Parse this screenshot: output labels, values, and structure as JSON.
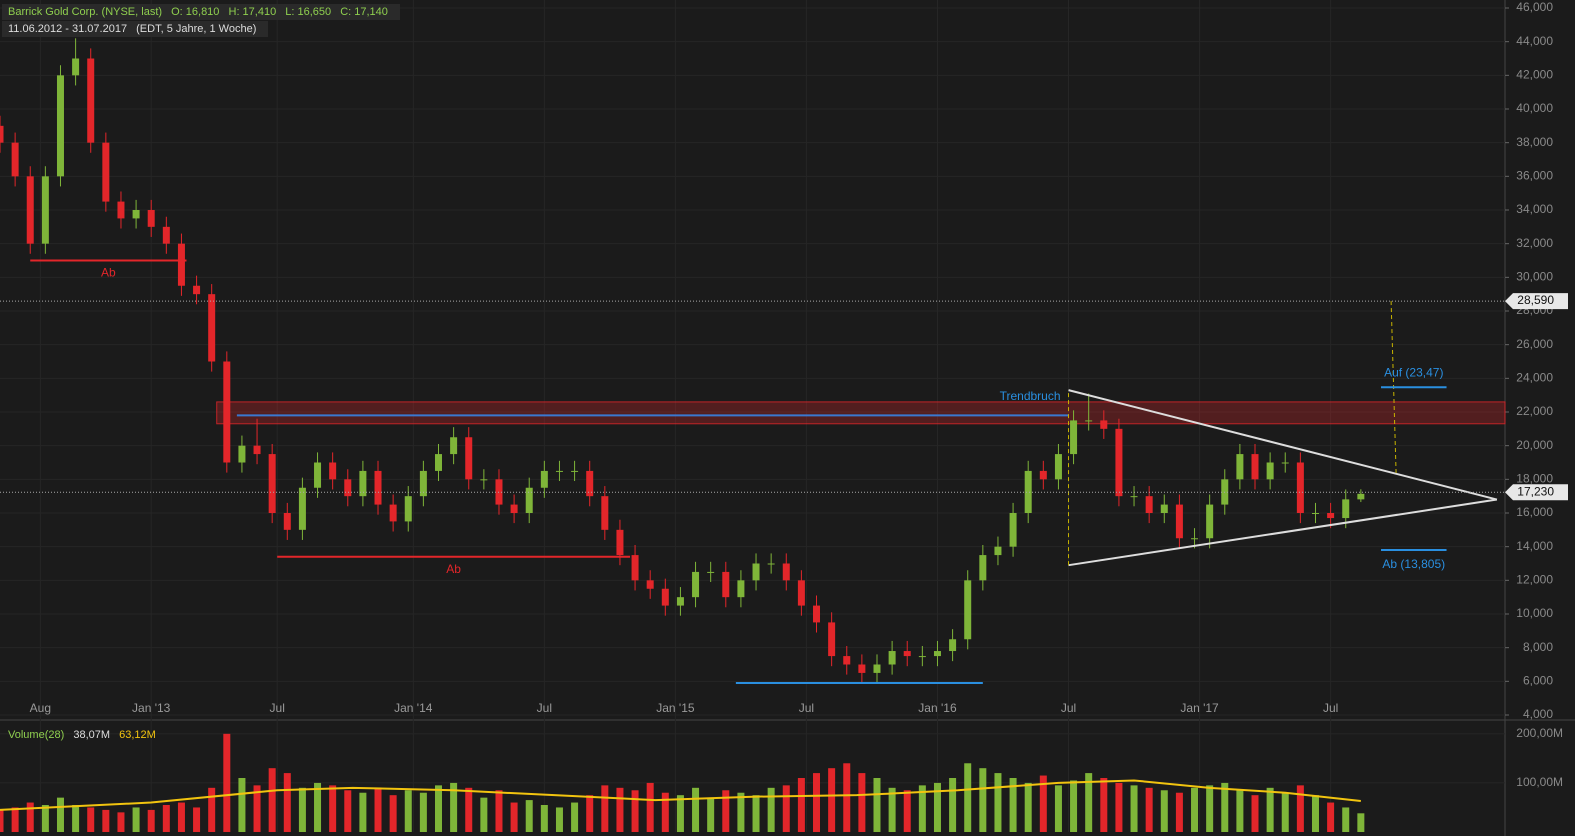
{
  "chart_data": {
    "type": "candlestick",
    "title": "Barrick Gold Corp. (NYSE, last)",
    "quote": [
      "O: 16,810",
      "H: 17,410",
      "L: 16,650",
      "C: 17,140"
    ],
    "range": "11.06.2012 - 31.07.2017",
    "range_note": "(EDT, 5 Jahre, 1 Woche)",
    "up_color": "#7fb539",
    "down_color": "#e3262a",
    "xlim": [
      0,
      298.6
    ],
    "ylim": [
      4,
      46
    ],
    "xticks": [
      {
        "value": 8,
        "label": "Aug"
      },
      {
        "value": 30,
        "label": "Jan '13"
      },
      {
        "value": 55,
        "label": "Jul"
      },
      {
        "value": 82,
        "label": "Jan '14"
      },
      {
        "value": 108,
        "label": "Jul"
      },
      {
        "value": 134,
        "label": "Jan '15"
      },
      {
        "value": 160,
        "label": "Jul"
      },
      {
        "value": 186,
        "label": "Jan '16"
      },
      {
        "value": 212,
        "label": "Jul"
      },
      {
        "value": 238,
        "label": "Jan '17"
      },
      {
        "value": 264,
        "label": "Jul"
      }
    ],
    "yticks": [
      {
        "value": 4,
        "label": "4,000"
      },
      {
        "value": 6,
        "label": "6,000"
      },
      {
        "value": 8,
        "label": "8,000"
      },
      {
        "value": 10,
        "label": "10,000"
      },
      {
        "value": 12,
        "label": "12,000"
      },
      {
        "value": 14,
        "label": "14,000"
      },
      {
        "value": 16,
        "label": "16,000"
      },
      {
        "value": 18,
        "label": "18,000"
      },
      {
        "value": 20,
        "label": "20,000"
      },
      {
        "value": 22,
        "label": "22,000"
      },
      {
        "value": 24,
        "label": "24,000"
      },
      {
        "value": 26,
        "label": "26,000"
      },
      {
        "value": 28,
        "label": "28,000"
      },
      {
        "value": 30,
        "label": "30,000"
      },
      {
        "value": 32,
        "label": "32,000"
      },
      {
        "value": 34,
        "label": "34,000"
      },
      {
        "value": 36,
        "label": "36,000"
      },
      {
        "value": 38,
        "label": "38,000"
      },
      {
        "value": 40,
        "label": "40,000"
      },
      {
        "value": 42,
        "label": "42,000"
      },
      {
        "value": 44,
        "label": "44,000"
      },
      {
        "value": 46,
        "label": "46,000"
      }
    ],
    "x": [
      0,
      3,
      6,
      9,
      12,
      15,
      18,
      21,
      24,
      27,
      30,
      33,
      36,
      39,
      42,
      45,
      48,
      51,
      54,
      57,
      60,
      63,
      66,
      69,
      72,
      75,
      78,
      81,
      84,
      87,
      90,
      93,
      96,
      99,
      102,
      105,
      108,
      111,
      114,
      117,
      120,
      123,
      126,
      129,
      132,
      135,
      138,
      141,
      144,
      147,
      150,
      153,
      156,
      159,
      162,
      165,
      168,
      171,
      174,
      177,
      180,
      183,
      186,
      189,
      192,
      195,
      198,
      201,
      204,
      207,
      210,
      213,
      216,
      219,
      222,
      225,
      228,
      231,
      234,
      237,
      240,
      243,
      246,
      249,
      252,
      255,
      258,
      261,
      264,
      267,
      270
    ],
    "ohlc": [
      [
        39,
        39.6,
        37.4,
        38
      ],
      [
        38,
        38.6,
        35.4,
        36
      ],
      [
        36,
        36.6,
        31.4,
        32
      ],
      [
        32,
        36.6,
        31.4,
        36
      ],
      [
        36,
        42.6,
        35.4,
        42
      ],
      [
        42,
        44.2,
        41.4,
        43
      ],
      [
        43,
        43.6,
        37.4,
        38
      ],
      [
        38,
        38.6,
        33.9,
        34.5
      ],
      [
        34.5,
        35.1,
        32.9,
        33.5
      ],
      [
        33.5,
        34.6,
        32.9,
        34
      ],
      [
        34,
        34.6,
        32.4,
        33
      ],
      [
        33,
        33.6,
        31.4,
        32
      ],
      [
        32,
        32.6,
        28.9,
        29.5
      ],
      [
        29.5,
        30.1,
        28.4,
        29
      ],
      [
        29,
        29.6,
        24.4,
        25
      ],
      [
        25,
        25.6,
        18.4,
        19
      ],
      [
        19,
        20.6,
        18.4,
        20
      ],
      [
        20,
        21.6,
        18.9,
        19.5
      ],
      [
        19.5,
        20.1,
        15.4,
        16
      ],
      [
        16,
        16.6,
        14.4,
        15
      ],
      [
        15,
        18.1,
        14.4,
        17.5
      ],
      [
        17.5,
        19.6,
        16.9,
        19
      ],
      [
        19,
        19.6,
        17.4,
        18
      ],
      [
        18,
        18.6,
        16.4,
        17
      ],
      [
        17,
        19.1,
        16.4,
        18.5
      ],
      [
        18.5,
        19.1,
        15.9,
        16.5
      ],
      [
        16.5,
        17.1,
        14.9,
        15.5
      ],
      [
        15.5,
        17.6,
        14.9,
        17
      ],
      [
        17,
        19.1,
        16.4,
        18.5
      ],
      [
        18.5,
        20.1,
        17.9,
        19.5
      ],
      [
        19.5,
        21.1,
        18.9,
        20.5
      ],
      [
        20.5,
        21.1,
        17.4,
        18
      ],
      [
        18,
        18.6,
        17.4,
        18
      ],
      [
        18,
        18.6,
        15.9,
        16.5
      ],
      [
        16.5,
        17.1,
        15.4,
        16
      ],
      [
        16,
        18.1,
        15.4,
        17.5
      ],
      [
        17.5,
        19.1,
        16.9,
        18.5
      ],
      [
        18.5,
        19.1,
        17.9,
        18.5
      ],
      [
        18.5,
        19.1,
        17.9,
        18.5
      ],
      [
        18.5,
        19.1,
        16.4,
        17
      ],
      [
        17,
        17.6,
        14.4,
        15
      ],
      [
        15,
        15.6,
        12.9,
        13.5
      ],
      [
        13.5,
        14.1,
        11.4,
        12
      ],
      [
        12,
        12.6,
        10.9,
        11.5
      ],
      [
        11.5,
        12.1,
        9.9,
        10.5
      ],
      [
        10.5,
        11.6,
        9.9,
        11
      ],
      [
        11,
        13.1,
        10.4,
        12.5
      ],
      [
        12.5,
        13.1,
        11.9,
        12.5
      ],
      [
        12.5,
        13.1,
        10.4,
        11
      ],
      [
        11,
        12.6,
        10.4,
        12
      ],
      [
        12,
        13.6,
        11.4,
        13
      ],
      [
        13,
        13.6,
        12.4,
        13
      ],
      [
        13,
        13.6,
        11.4,
        12
      ],
      [
        12,
        12.6,
        9.9,
        10.5
      ],
      [
        10.5,
        11.1,
        8.9,
        9.5
      ],
      [
        9.5,
        10.1,
        6.9,
        7.5
      ],
      [
        7.5,
        8.1,
        6.4,
        7
      ],
      [
        7,
        7.6,
        5.9,
        6.5
      ],
      [
        6.5,
        7.6,
        5.9,
        7
      ],
      [
        7,
        8.4,
        6.4,
        7.8
      ],
      [
        7.8,
        8.4,
        6.9,
        7.5
      ],
      [
        7.5,
        8.1,
        6.9,
        7.5
      ],
      [
        7.5,
        8.4,
        6.9,
        7.8
      ],
      [
        7.8,
        9.1,
        7.2,
        8.5
      ],
      [
        8.5,
        12.6,
        7.9,
        12
      ],
      [
        12,
        14.1,
        11.4,
        13.5
      ],
      [
        13.5,
        14.6,
        12.9,
        14
      ],
      [
        14,
        16.6,
        13.4,
        16
      ],
      [
        16,
        19.1,
        15.4,
        18.5
      ],
      [
        18.5,
        19.1,
        17.4,
        18
      ],
      [
        18,
        20.1,
        17.4,
        19.5
      ],
      [
        19.5,
        22.1,
        18.9,
        21.5
      ],
      [
        21.5,
        23.1,
        20.9,
        21.5
      ],
      [
        21.5,
        22.1,
        20.4,
        21
      ],
      [
        21,
        21.6,
        16.4,
        17
      ],
      [
        17,
        17.6,
        16.4,
        17
      ],
      [
        17,
        17.6,
        15.4,
        16
      ],
      [
        16,
        17.1,
        15.4,
        16.5
      ],
      [
        16.5,
        17.1,
        13.9,
        14.5
      ],
      [
        14.5,
        15.1,
        13.9,
        14.5
      ],
      [
        14.5,
        17.1,
        13.9,
        16.5
      ],
      [
        16.5,
        18.6,
        15.9,
        18
      ],
      [
        18,
        20.1,
        17.4,
        19.5
      ],
      [
        19.5,
        20.1,
        17.4,
        18
      ],
      [
        18,
        19.6,
        17.4,
        19
      ],
      [
        19,
        19.6,
        18.4,
        19
      ],
      [
        19,
        19.6,
        15.4,
        16
      ],
      [
        16,
        16.6,
        15.4,
        16
      ],
      [
        16,
        16.6,
        15.1,
        15.7
      ],
      [
        15.7,
        17.4,
        15.1,
        16.81
      ],
      [
        16.81,
        17.41,
        16.65,
        17.14
      ]
    ],
    "volume": {
      "legend": "Volume(28)",
      "last": "38,07M",
      "ma_label": "63,12M",
      "ma_color": "#f2c40f",
      "ylim": [
        0,
        220
      ],
      "yticks": [
        {
          "value": 100,
          "label": "100,00M"
        },
        {
          "value": 200,
          "label": "200,00M"
        }
      ],
      "values": [
        45,
        50,
        60,
        55,
        70,
        55,
        50,
        45,
        40,
        50,
        45,
        55,
        60,
        50,
        90,
        200,
        110,
        95,
        130,
        120,
        90,
        100,
        95,
        85,
        80,
        90,
        75,
        85,
        80,
        95,
        100,
        90,
        70,
        85,
        60,
        65,
        55,
        50,
        60,
        75,
        95,
        90,
        85,
        100,
        80,
        75,
        90,
        70,
        85,
        80,
        75,
        90,
        95,
        110,
        120,
        130,
        140,
        120,
        110,
        90,
        85,
        95,
        100,
        110,
        140,
        130,
        120,
        110,
        100,
        115,
        95,
        105,
        120,
        110,
        100,
        95,
        90,
        85,
        80,
        90,
        95,
        100,
        85,
        75,
        90,
        80,
        95,
        75,
        60,
        50,
        38.07
      ],
      "ma_x": [
        0,
        30,
        55,
        70,
        90,
        110,
        130,
        150,
        170,
        190,
        210,
        225,
        240,
        255,
        270
      ],
      "ma": [
        45,
        60,
        85,
        90,
        85,
        75,
        65,
        72,
        75,
        85,
        100,
        105,
        90,
        80,
        63.12
      ]
    },
    "annotations": [
      {
        "kind": "segment",
        "x": [
          6,
          37
        ],
        "y": [
          31,
          31
        ],
        "color": "#e3262a",
        "label": "Ab"
      },
      {
        "kind": "segment",
        "x": [
          55,
          125
        ],
        "y": [
          13.4,
          13.4
        ],
        "color": "#e3262a",
        "label": "Ab"
      },
      {
        "kind": "segment",
        "x": [
          146,
          195
        ],
        "y": [
          5.9,
          5.9
        ],
        "color": "#2a8fe0"
      },
      {
        "kind": "segment",
        "x": [
          47,
          212
        ],
        "y": [
          21.8,
          21.8
        ],
        "color": "#3a78d0"
      },
      {
        "kind": "segment",
        "x": [
          212,
          297
        ],
        "y": [
          23.3,
          16.8
        ],
        "color": "#dddddd"
      },
      {
        "kind": "segment",
        "x": [
          212,
          297
        ],
        "y": [
          12.9,
          16.8
        ],
        "color": "#dddddd"
      },
      {
        "kind": "segment",
        "x": [
          212,
          212
        ],
        "y": [
          12.9,
          23.3
        ],
        "color": "#c8b400",
        "dash": true
      },
      {
        "kind": "segment",
        "x": [
          276,
          277
        ],
        "y": [
          28.59,
          18.3
        ],
        "color": "#c8b400",
        "dash": true
      },
      {
        "kind": "segment",
        "x": [
          274,
          287
        ],
        "y": [
          23.47,
          23.47
        ],
        "color": "#2a8fe0",
        "label": "Auf (23,47)"
      },
      {
        "kind": "segment",
        "x": [
          274,
          287
        ],
        "y": [
          13.805,
          13.805
        ],
        "color": "#2a8fe0",
        "label": "Ab (13,805)"
      },
      {
        "kind": "zone",
        "x": [
          43,
          298.6
        ],
        "y": [
          21.3,
          22.6
        ],
        "color": "#e3262a"
      },
      {
        "kind": "text",
        "x": [
          212
        ],
        "y": [
          22.9
        ],
        "color": "#2a8fe0",
        "label": "Trendbruch"
      }
    ],
    "price_markers": [
      {
        "value": 28.59,
        "label": "28,590"
      },
      {
        "value": 17.23,
        "label": "17,230"
      }
    ]
  }
}
